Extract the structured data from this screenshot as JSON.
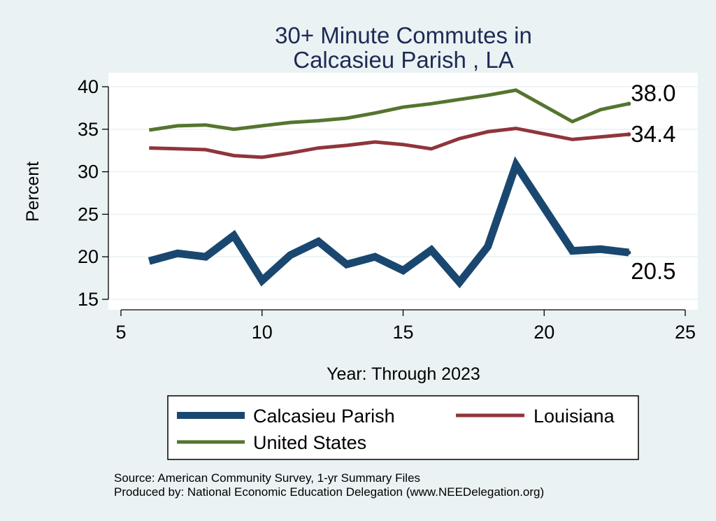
{
  "chart_data": {
    "type": "line",
    "title": [
      "30+ Minute Commutes in",
      "Calcasieu Parish , LA"
    ],
    "xlabel": "Year: Through 2023",
    "ylabel": "Percent",
    "xlim": [
      5,
      25
    ],
    "ylim": [
      14,
      41
    ],
    "xticks": [
      5,
      10,
      15,
      20,
      25
    ],
    "yticks": [
      15,
      20,
      25,
      30,
      35,
      40
    ],
    "grid": true,
    "x": [
      6,
      7,
      8,
      9,
      10,
      11,
      12,
      13,
      14,
      15,
      16,
      17,
      18,
      19,
      21,
      22,
      23
    ],
    "series": [
      {
        "name": "Calcasieu Parish",
        "color": "#1a476f",
        "values": [
          19.5,
          20.4,
          20.0,
          22.5,
          17.2,
          20.2,
          21.8,
          19.1,
          20.0,
          18.4,
          20.8,
          17.0,
          21.2,
          30.8,
          20.7,
          20.9,
          20.5
        ],
        "end_label": "20.5"
      },
      {
        "name": "Louisiana",
        "color": "#90353b",
        "values": [
          32.8,
          32.7,
          32.6,
          31.9,
          31.7,
          32.2,
          32.8,
          33.1,
          33.5,
          33.2,
          32.7,
          33.9,
          34.7,
          35.1,
          33.8,
          34.1,
          34.4
        ],
        "end_label": "34.4"
      },
      {
        "name": "United States",
        "color": "#55752f",
        "values": [
          34.9,
          35.4,
          35.5,
          35.0,
          35.4,
          35.8,
          36.0,
          36.3,
          36.9,
          37.6,
          38.0,
          38.5,
          39.0,
          39.6,
          35.9,
          37.3,
          38.0
        ],
        "end_label": "38.0"
      }
    ],
    "legend": {
      "position": "bottom",
      "entries": [
        "Calcasieu Parish",
        "Louisiana",
        "United States"
      ]
    },
    "notes": [
      "Source: American Community Survey, 1-yr Summary Files",
      "Produced by: National Economic Education Delegation (www.NEEDelegation.org)"
    ]
  }
}
